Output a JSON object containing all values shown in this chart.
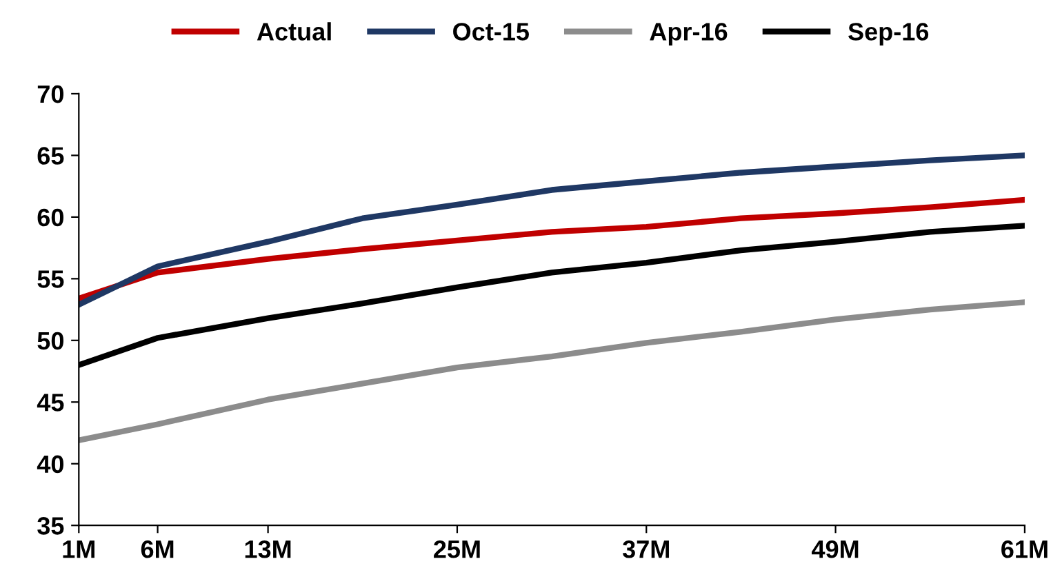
{
  "chart_data": {
    "type": "line",
    "x": [
      1,
      6,
      13,
      19,
      25,
      31,
      37,
      43,
      49,
      55,
      61
    ],
    "series": [
      {
        "name": "Actual",
        "color": "#c00000",
        "values": [
          53.4,
          55.5,
          56.6,
          57.4,
          58.1,
          58.8,
          59.2,
          59.9,
          60.3,
          60.8,
          61.4
        ]
      },
      {
        "name": "Oct-15",
        "color": "#1f3864",
        "values": [
          52.9,
          56.0,
          58.0,
          59.9,
          61.0,
          62.2,
          62.9,
          63.6,
          64.1,
          64.6,
          65.0
        ]
      },
      {
        "name": "Apr-16",
        "color": "#8c8c8c",
        "values": [
          41.9,
          43.2,
          45.2,
          46.5,
          47.8,
          48.7,
          49.8,
          50.7,
          51.7,
          52.5,
          53.1
        ]
      },
      {
        "name": "Sep-16",
        "color": "#000000",
        "values": [
          48.0,
          50.2,
          51.8,
          53.0,
          54.3,
          55.5,
          56.3,
          57.3,
          58.0,
          58.8,
          59.3
        ]
      }
    ],
    "xlim": [
      1,
      61
    ],
    "xticks": [
      {
        "value": 1,
        "label": "1M"
      },
      {
        "value": 6,
        "label": "6M"
      },
      {
        "value": 13,
        "label": "13M"
      },
      {
        "value": 25,
        "label": "25M"
      },
      {
        "value": 37,
        "label": "37M"
      },
      {
        "value": 49,
        "label": "49M"
      },
      {
        "value": 61,
        "label": "61M"
      }
    ],
    "ylim": [
      35,
      70
    ],
    "yticks": [
      35,
      40,
      45,
      50,
      55,
      60,
      65,
      70
    ],
    "legend": "top",
    "grid": false,
    "marker": "none",
    "line_style": "solid"
  }
}
